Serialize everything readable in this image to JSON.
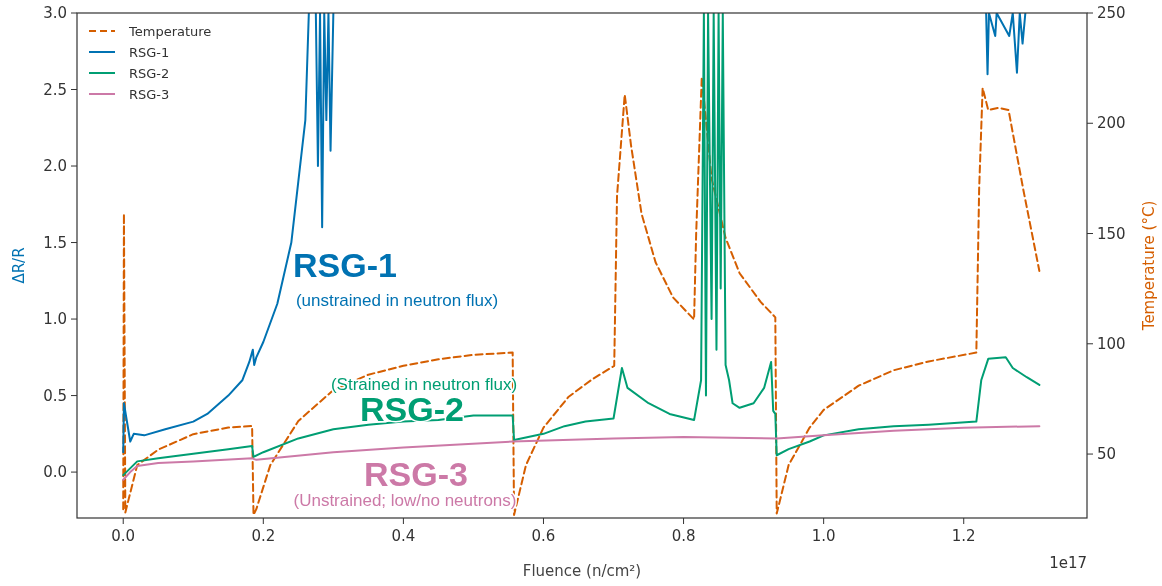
{
  "chart_data": {
    "type": "line",
    "xlabel": "Fluence (n/cm²)",
    "ylabel": "ΔR/R",
    "y2label": "Temperature (°C)",
    "xlim": [
      -0.066,
      1.376
    ],
    "xticks": [
      {
        "value": 0,
        "label": "0.0"
      },
      {
        "value": 0.2,
        "label": "0.2"
      },
      {
        "value": 0.4,
        "label": "0.4"
      },
      {
        "value": 0.6,
        "label": "0.6"
      },
      {
        "value": 0.8,
        "label": "0.8"
      },
      {
        "value": 1.0,
        "label": "1.0"
      },
      {
        "value": 1.2,
        "label": "1.2"
      }
    ],
    "ylim": [
      -0.3,
      3.0
    ],
    "yticks": [
      {
        "value": 0,
        "label": "0.0"
      },
      {
        "value": 0.5,
        "label": "0.5"
      },
      {
        "value": 1.0,
        "label": "1.0"
      },
      {
        "value": 1.5,
        "label": "1.5"
      },
      {
        "value": 2.0,
        "label": "2.0"
      },
      {
        "value": 2.5,
        "label": "2.5"
      },
      {
        "value": 3.0,
        "label": "3.0"
      }
    ],
    "y2lim": [
      21,
      250
    ],
    "y2ticks": [
      50,
      100,
      150,
      200,
      250
    ],
    "grid": false,
    "legend": "top left",
    "marker": "none",
    "series": [
      {
        "name": "Temperature",
        "color": "#d55e00",
        "axis": "y2",
        "line_style": "dashed",
        "x": [
          0,
          0.001,
          0.003,
          0.02,
          0.05,
          0.1,
          0.15,
          0.184,
          0.186,
          0.19,
          0.21,
          0.25,
          0.3,
          0.35,
          0.4,
          0.45,
          0.5,
          0.556,
          0.558,
          0.575,
          0.6,
          0.636,
          0.67,
          0.701,
          0.705,
          0.716,
          0.725,
          0.74,
          0.76,
          0.785,
          0.815,
          0.818,
          0.826,
          0.84,
          0.86,
          0.88,
          0.91,
          0.931,
          0.933,
          0.95,
          0.98,
          1.0,
          1.05,
          1.1,
          1.15,
          1.218,
          1.222,
          1.227,
          1.235,
          1.25,
          1.264,
          1.285,
          1.308
        ],
        "values": [
          25,
          159,
          23.5,
          45,
          52,
          59,
          62,
          62.7,
          22.4,
          25,
          45,
          65,
          79,
          86,
          90,
          93,
          95,
          96,
          22.4,
          45,
          62,
          76,
          84,
          90,
          167,
          213,
          190,
          159,
          137,
          121,
          111,
          150,
          221,
          175,
          148,
          132,
          119,
          112,
          23,
          45,
          62,
          70,
          81,
          88,
          92,
          96,
          170,
          216,
          206,
          207,
          206,
          170,
          133
        ]
      },
      {
        "name": "RSG-1",
        "color": "#0072b2",
        "x": [
          0,
          0.001,
          0.01,
          0.015,
          0.03,
          0.06,
          0.1,
          0.12,
          0.15,
          0.17,
          0.18,
          0.185,
          0.187,
          0.19,
          0.2,
          0.22,
          0.24,
          0.25,
          0.26,
          0.265,
          0.27,
          0.275,
          0.278,
          0.281,
          0.284,
          0.287,
          0.29,
          0.293,
          0.296,
          0.3,
          0.31,
          1.232,
          1.234,
          1.236,
          1.245,
          1.247,
          1.265,
          1.27,
          1.276,
          1.28,
          1.284,
          1.288
        ],
        "values": [
          0.13,
          0.45,
          0.2,
          0.25,
          0.24,
          0.28,
          0.33,
          0.38,
          0.5,
          0.6,
          0.72,
          0.8,
          0.7,
          0.75,
          0.85,
          1.1,
          1.5,
          1.9,
          2.3,
          3.0,
          null,
          3.0,
          2.0,
          3.0,
          1.6,
          3.0,
          2.3,
          3.0,
          2.1,
          3.0,
          null,
          3.0,
          2.6,
          3.0,
          2.85,
          3.0,
          2.85,
          3.0,
          2.61,
          3.0,
          2.8,
          3.0
        ]
      },
      {
        "name": "RSG-2",
        "color": "#009e73",
        "x": [
          0,
          0.02,
          0.05,
          0.1,
          0.15,
          0.184,
          0.186,
          0.2,
          0.25,
          0.3,
          0.35,
          0.4,
          0.45,
          0.5,
          0.556,
          0.558,
          0.6,
          0.63,
          0.66,
          0.7,
          0.712,
          0.72,
          0.75,
          0.78,
          0.815,
          0.825,
          0.829,
          0.832,
          0.835,
          0.84,
          0.843,
          0.847,
          0.85,
          0.853,
          0.856,
          0.86,
          0.865,
          0.87,
          0.88,
          0.9,
          0.915,
          0.925,
          0.928,
          0.931,
          0.933,
          0.95,
          0.98,
          1.0,
          1.05,
          1.1,
          1.15,
          1.218,
          1.225,
          1.235,
          1.26,
          1.27,
          1.29,
          1.308
        ],
        "values": [
          -0.02,
          0.07,
          0.09,
          0.12,
          0.15,
          0.17,
          0.1,
          0.13,
          0.22,
          0.28,
          0.31,
          0.33,
          0.34,
          0.37,
          0.37,
          0.21,
          0.25,
          0.3,
          0.33,
          0.35,
          0.68,
          0.55,
          0.45,
          0.38,
          0.34,
          0.6,
          3.0,
          0.5,
          3.0,
          1.0,
          3.0,
          0.8,
          3.0,
          1.2,
          3.0,
          0.7,
          0.6,
          0.45,
          0.42,
          0.45,
          0.55,
          0.72,
          0.4,
          0.38,
          0.11,
          0.15,
          0.2,
          0.24,
          0.28,
          0.3,
          0.31,
          0.33,
          0.6,
          0.74,
          0.75,
          0.68,
          0.62,
          0.57
        ]
      },
      {
        "name": "RSG-3",
        "color": "#cc79a7",
        "x": [
          0,
          0.01,
          0.02,
          0.05,
          0.1,
          0.184,
          0.19,
          0.3,
          0.4,
          0.556,
          0.7,
          0.8,
          0.933,
          1.0,
          1.1,
          1.2,
          1.308
        ],
        "values": [
          -0.05,
          0.0,
          0.04,
          0.06,
          0.07,
          0.09,
          0.08,
          0.13,
          0.16,
          0.2,
          0.22,
          0.23,
          0.22,
          0.24,
          0.27,
          0.29,
          0.3
        ]
      }
    ],
    "annotations": [
      "RSG-1",
      "(unstrained  in neutron flux)",
      "RSG-2",
      "(Strained in neutron flux)",
      "RSG-3",
      "(Unstrained;  low/no neutrons)",
      "1e17"
    ]
  }
}
